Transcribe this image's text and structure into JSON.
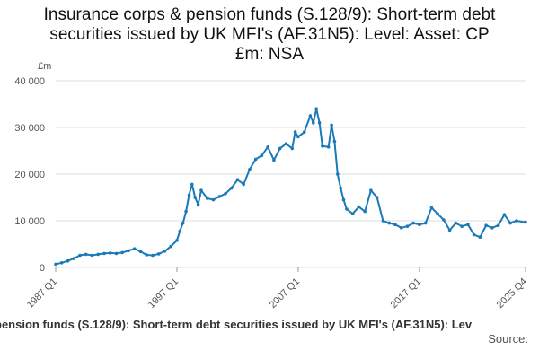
{
  "title_lines": [
    "Insurance corps & pension funds (S.128/9): Short-term debt",
    "securities issued by UK MFI's (AF.31N5): Level: Asset: CP",
    "£m: NSA"
  ],
  "footer": {
    "series_label": "pension funds (S.128/9): Short-term debt securities issued by UK MFI's (AF.31N5): Lev",
    "source_label": "Source:"
  },
  "colors": {
    "line": "#1a7ab8",
    "grid": "#dddddd",
    "axis_text": "#555555"
  },
  "chart_data": {
    "type": "line",
    "title": "Insurance corps & pension funds (S.128/9): Short-term debt securities issued by UK MFI's (AF.31N5): Level: Asset: CP £m: NSA",
    "ylabel": "£m",
    "ylim": [
      0,
      40000
    ],
    "yticks": [
      0,
      10000,
      20000,
      30000,
      40000
    ],
    "ytick_labels": [
      "0",
      "10 000",
      "20 000",
      "30 000",
      "40 000"
    ],
    "xtick_labels": [
      "1987 Q1",
      "1997 Q1",
      "2007 Q1",
      "2017 Q1",
      "2025 Q4"
    ],
    "grid": true,
    "series": [
      {
        "values": [
          {
            "x": "1987 Q1",
            "y": 700
          },
          {
            "x": "1987 Q3",
            "y": 1000
          },
          {
            "x": "1988 Q1",
            "y": 1400
          },
          {
            "x": "1988 Q3",
            "y": 1900
          },
          {
            "x": "1989 Q1",
            "y": 2600
          },
          {
            "x": "1989 Q3",
            "y": 2800
          },
          {
            "x": "1990 Q1",
            "y": 2600
          },
          {
            "x": "1990 Q3",
            "y": 2800
          },
          {
            "x": "1991 Q1",
            "y": 3000
          },
          {
            "x": "1991 Q3",
            "y": 3100
          },
          {
            "x": "1992 Q1",
            "y": 3000
          },
          {
            "x": "1992 Q3",
            "y": 3200
          },
          {
            "x": "1993 Q1",
            "y": 3600
          },
          {
            "x": "1993 Q3",
            "y": 4000
          },
          {
            "x": "1994 Q1",
            "y": 3400
          },
          {
            "x": "1994 Q3",
            "y": 2700
          },
          {
            "x": "1995 Q1",
            "y": 2600
          },
          {
            "x": "1995 Q3",
            "y": 2900
          },
          {
            "x": "1996 Q1",
            "y": 3500
          },
          {
            "x": "1996 Q3",
            "y": 4500
          },
          {
            "x": "1997 Q1",
            "y": 5800
          },
          {
            "x": "1997 Q2",
            "y": 7800
          },
          {
            "x": "1997 Q3",
            "y": 9500
          },
          {
            "x": "1997 Q4",
            "y": 12000
          },
          {
            "x": "1998 Q1",
            "y": 15500
          },
          {
            "x": "1998 Q2",
            "y": 17800
          },
          {
            "x": "1998 Q3",
            "y": 15000
          },
          {
            "x": "1998 Q4",
            "y": 13500
          },
          {
            "x": "1999 Q1",
            "y": 16500
          },
          {
            "x": "1999 Q3",
            "y": 14800
          },
          {
            "x": "2000 Q1",
            "y": 14500
          },
          {
            "x": "2000 Q3",
            "y": 15200
          },
          {
            "x": "2001 Q1",
            "y": 15800
          },
          {
            "x": "2001 Q3",
            "y": 17000
          },
          {
            "x": "2002 Q1",
            "y": 18800
          },
          {
            "x": "2002 Q3",
            "y": 17800
          },
          {
            "x": "2003 Q1",
            "y": 21000
          },
          {
            "x": "2003 Q3",
            "y": 23200
          },
          {
            "x": "2004 Q1",
            "y": 24000
          },
          {
            "x": "2004 Q3",
            "y": 25800
          },
          {
            "x": "2005 Q1",
            "y": 23000
          },
          {
            "x": "2005 Q3",
            "y": 25500
          },
          {
            "x": "2006 Q1",
            "y": 26500
          },
          {
            "x": "2006 Q3",
            "y": 25500
          },
          {
            "x": "2006 Q4",
            "y": 29000
          },
          {
            "x": "2007 Q1",
            "y": 28000
          },
          {
            "x": "2007 Q3",
            "y": 29000
          },
          {
            "x": "2008 Q1",
            "y": 32500
          },
          {
            "x": "2008 Q2",
            "y": 31000
          },
          {
            "x": "2008 Q3",
            "y": 34000
          },
          {
            "x": "2008 Q4",
            "y": 31000
          },
          {
            "x": "2009 Q1",
            "y": 26000
          },
          {
            "x": "2009 Q3",
            "y": 25800
          },
          {
            "x": "2009 Q4",
            "y": 30500
          },
          {
            "x": "2010 Q1",
            "y": 27000
          },
          {
            "x": "2010 Q2",
            "y": 20000
          },
          {
            "x": "2010 Q3",
            "y": 17000
          },
          {
            "x": "2010 Q4",
            "y": 14500
          },
          {
            "x": "2011 Q1",
            "y": 12500
          },
          {
            "x": "2011 Q3",
            "y": 11500
          },
          {
            "x": "2012 Q1",
            "y": 13000
          },
          {
            "x": "2012 Q3",
            "y": 12000
          },
          {
            "x": "2013 Q1",
            "y": 16500
          },
          {
            "x": "2013 Q3",
            "y": 15000
          },
          {
            "x": "2014 Q1",
            "y": 10000
          },
          {
            "x": "2014 Q3",
            "y": 9500
          },
          {
            "x": "2015 Q1",
            "y": 9200
          },
          {
            "x": "2015 Q3",
            "y": 8500
          },
          {
            "x": "2016 Q1",
            "y": 8800
          },
          {
            "x": "2016 Q3",
            "y": 9500
          },
          {
            "x": "2017 Q1",
            "y": 9200
          },
          {
            "x": "2017 Q3",
            "y": 9500
          },
          {
            "x": "2018 Q1",
            "y": 12800
          },
          {
            "x": "2018 Q3",
            "y": 11500
          },
          {
            "x": "2019 Q1",
            "y": 10200
          },
          {
            "x": "2019 Q3",
            "y": 8000
          },
          {
            "x": "2020 Q1",
            "y": 9500
          },
          {
            "x": "2020 Q3",
            "y": 8800
          },
          {
            "x": "2021 Q1",
            "y": 9200
          },
          {
            "x": "2021 Q3",
            "y": 7000
          },
          {
            "x": "2022 Q1",
            "y": 6500
          },
          {
            "x": "2022 Q3",
            "y": 9000
          },
          {
            "x": "2023 Q1",
            "y": 8500
          },
          {
            "x": "2023 Q3",
            "y": 9000
          },
          {
            "x": "2024 Q1",
            "y": 11300
          },
          {
            "x": "2024 Q3",
            "y": 9500
          },
          {
            "x": "2025 Q1",
            "y": 10000
          },
          {
            "x": "2025 Q4",
            "y": 9700
          }
        ]
      }
    ]
  }
}
